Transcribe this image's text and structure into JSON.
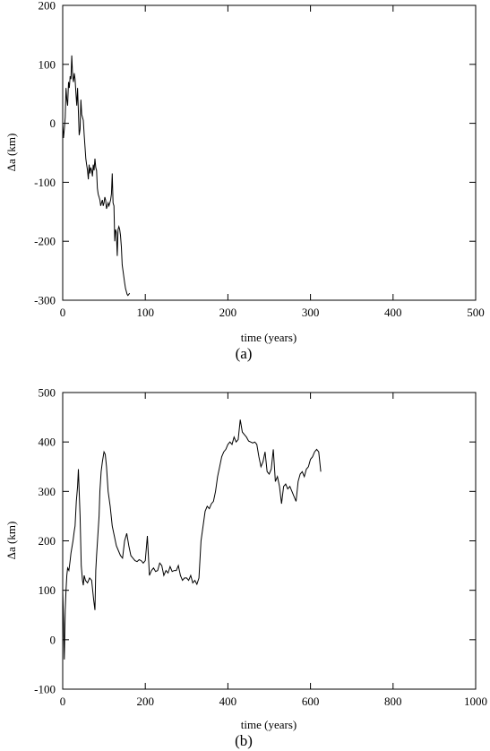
{
  "chart_data": [
    {
      "type": "line",
      "panel_label": "(a)",
      "xlabel": "time (years)",
      "ylabel": "Δa (km)",
      "xlim": [
        0,
        500
      ],
      "ylim": [
        -300,
        200
      ],
      "xticks": [
        0,
        100,
        200,
        300,
        400,
        500
      ],
      "yticks": [
        -300,
        -200,
        -100,
        0,
        100,
        200
      ],
      "grid": false,
      "series": [
        {
          "color": "#000000",
          "x": [
            0,
            1,
            2,
            3,
            4,
            5,
            6,
            7,
            8,
            9,
            10,
            11,
            12,
            13,
            14,
            15,
            16,
            17,
            18,
            19,
            20,
            21,
            22,
            23,
            24,
            25,
            26,
            27,
            28,
            29,
            30,
            31,
            32,
            33,
            34,
            35,
            36,
            37,
            38,
            39,
            40,
            41,
            42,
            43,
            44,
            45,
            46,
            47,
            48,
            49,
            50,
            51,
            52,
            53,
            54,
            55,
            56,
            57,
            58,
            59,
            60,
            61,
            62,
            63,
            64,
            65,
            66,
            67,
            68,
            69,
            70,
            71,
            72,
            73,
            74,
            75,
            76,
            77,
            78,
            79,
            80,
            81
          ],
          "y": [
            0,
            -25,
            -10,
            10,
            60,
            40,
            30,
            70,
            60,
            80,
            75,
            115,
            80,
            70,
            85,
            75,
            50,
            30,
            60,
            20,
            -20,
            -10,
            40,
            15,
            10,
            5,
            -20,
            -40,
            -60,
            -70,
            -80,
            -95,
            -70,
            -85,
            -75,
            -80,
            -90,
            -70,
            -80,
            -60,
            -75,
            -80,
            -110,
            -120,
            -125,
            -130,
            -140,
            -135,
            -130,
            -140,
            -135,
            -125,
            -130,
            -145,
            -140,
            -135,
            -140,
            -135,
            -130,
            -120,
            -85,
            -135,
            -140,
            -200,
            -180,
            -185,
            -225,
            -180,
            -175,
            -180,
            -190,
            -210,
            -240,
            -250,
            -260,
            -270,
            -280,
            -285,
            -290,
            -292,
            -290,
            -288
          ]
        }
      ]
    },
    {
      "type": "line",
      "panel_label": "(b)",
      "xlabel": "time (years)",
      "ylabel": "Δa (km)",
      "xlim": [
        0,
        1000
      ],
      "ylim": [
        -100,
        500
      ],
      "xticks": [
        0,
        200,
        400,
        600,
        800,
        1000
      ],
      "yticks": [
        -100,
        0,
        100,
        200,
        300,
        400,
        500
      ],
      "grid": false,
      "series": [
        {
          "color": "#000000",
          "x": [
            0,
            2,
            4,
            6,
            8,
            10,
            12,
            15,
            18,
            20,
            25,
            28,
            30,
            33,
            36,
            38,
            40,
            42,
            45,
            48,
            50,
            52,
            55,
            60,
            65,
            70,
            75,
            78,
            80,
            82,
            85,
            88,
            90,
            93,
            96,
            100,
            103,
            106,
            110,
            115,
            120,
            125,
            130,
            135,
            140,
            145,
            150,
            155,
            160,
            165,
            170,
            175,
            180,
            185,
            190,
            195,
            200,
            205,
            210,
            215,
            220,
            225,
            230,
            235,
            240,
            245,
            250,
            255,
            260,
            265,
            270,
            275,
            280,
            285,
            290,
            295,
            300,
            305,
            310,
            315,
            320,
            325,
            330,
            335,
            340,
            345,
            350,
            355,
            360,
            365,
            370,
            375,
            380,
            385,
            390,
            395,
            400,
            405,
            410,
            415,
            420,
            425,
            430,
            435,
            440,
            445,
            450,
            455,
            460,
            465,
            470,
            475,
            480,
            485,
            490,
            495,
            500,
            505,
            510,
            515,
            520,
            525,
            530,
            535,
            540,
            545,
            550,
            555,
            560,
            565,
            570,
            575,
            580,
            585,
            590,
            595,
            600,
            605,
            610,
            615,
            620,
            625
          ],
          "y": [
            100,
            40,
            -40,
            60,
            100,
            130,
            145,
            140,
            160,
            175,
            200,
            220,
            230,
            280,
            310,
            345,
            300,
            250,
            150,
            120,
            110,
            130,
            120,
            115,
            125,
            120,
            80,
            60,
            140,
            170,
            210,
            250,
            300,
            340,
            360,
            380,
            375,
            350,
            300,
            270,
            230,
            210,
            190,
            180,
            170,
            165,
            200,
            215,
            190,
            170,
            165,
            160,
            158,
            162,
            160,
            155,
            160,
            210,
            130,
            140,
            145,
            138,
            140,
            155,
            150,
            130,
            140,
            135,
            148,
            138,
            140,
            140,
            150,
            130,
            120,
            125,
            125,
            120,
            130,
            115,
            120,
            112,
            125,
            200,
            230,
            260,
            270,
            265,
            275,
            280,
            300,
            330,
            350,
            370,
            380,
            385,
            395,
            400,
            395,
            410,
            400,
            405,
            445,
            420,
            415,
            410,
            402,
            400,
            398,
            400,
            395,
            370,
            350,
            360,
            380,
            340,
            335,
            345,
            385,
            320,
            330,
            310,
            275,
            310,
            315,
            305,
            310,
            300,
            290,
            280,
            320,
            335,
            340,
            330,
            345,
            350,
            365,
            370,
            380,
            385,
            380,
            340
          ]
        }
      ]
    }
  ]
}
